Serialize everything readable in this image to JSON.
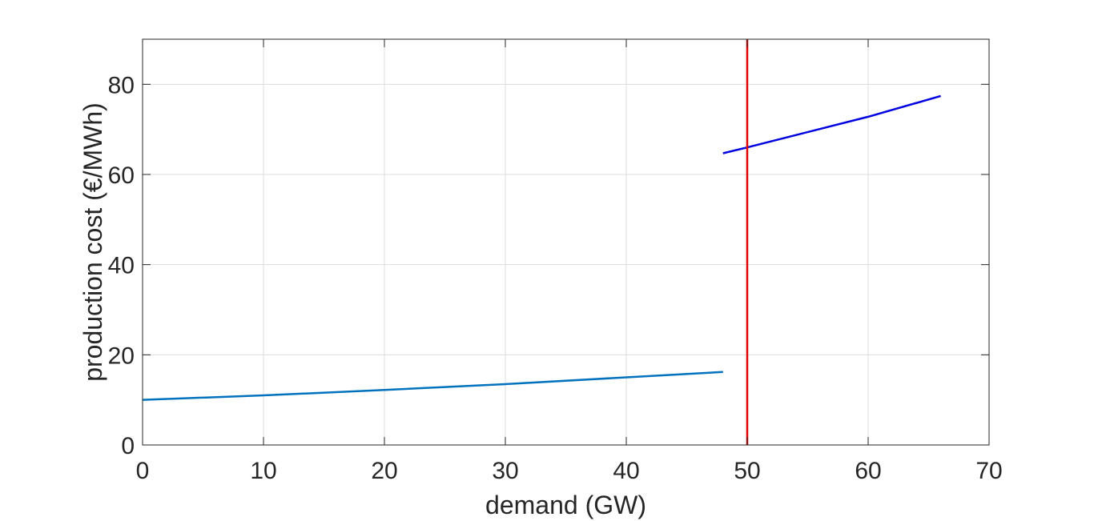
{
  "chart_data": {
    "type": "line",
    "title": "",
    "xlabel": "demand (GW)",
    "ylabel": "production cost (€/MWh)",
    "xlim": [
      0,
      70
    ],
    "ylim": [
      0,
      90
    ],
    "xticks": [
      0,
      10,
      20,
      30,
      40,
      50,
      60,
      70
    ],
    "yticks": [
      0,
      20,
      40,
      60,
      80
    ],
    "grid": true,
    "series": [
      {
        "color": "#0072BD",
        "x": [
          0,
          10,
          20,
          30,
          40,
          48
        ],
        "y": [
          10,
          11,
          12.2,
          13.5,
          15,
          16.2
        ]
      },
      {
        "color": "#0000E0",
        "x": [
          48,
          50,
          60,
          66
        ],
        "y": [
          64.7,
          66,
          72.8,
          77.4
        ]
      }
    ],
    "annotations": [
      {
        "type": "vline",
        "x": 50,
        "color": "#E00000"
      }
    ]
  }
}
